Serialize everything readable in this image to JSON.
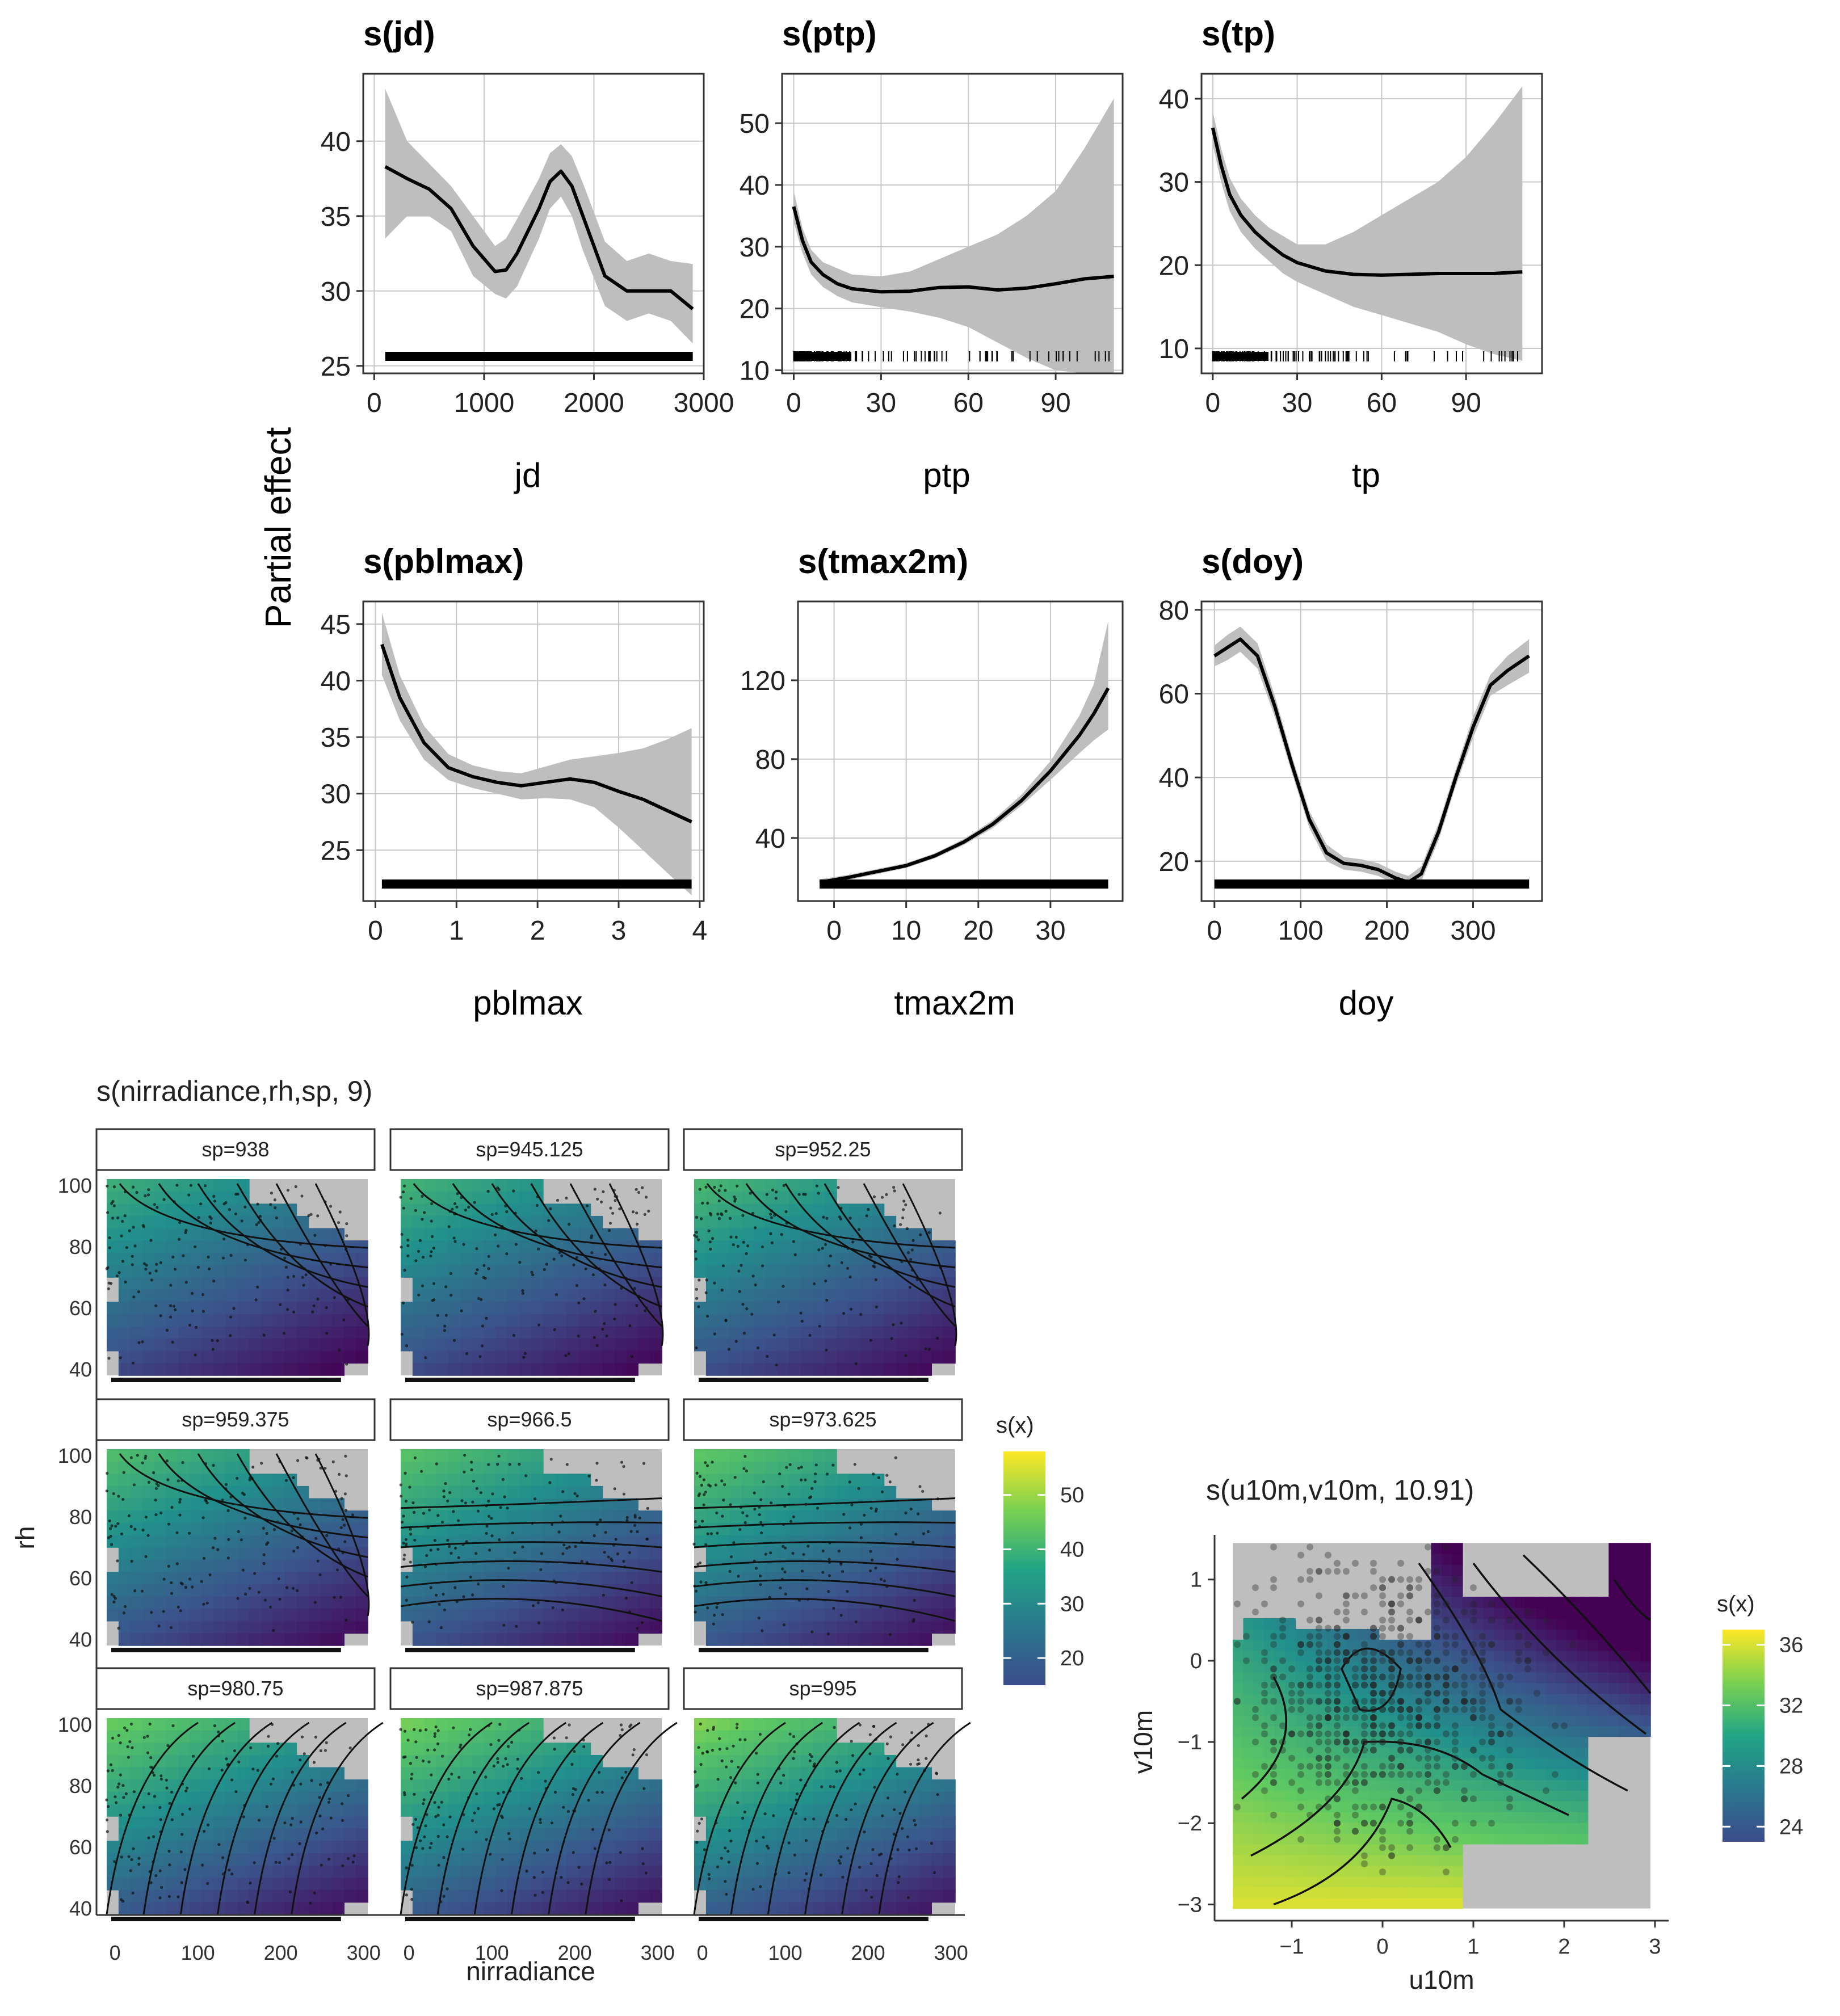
{
  "figure": {
    "y_axis_label": "Partial effect",
    "colorbar_main": {
      "title": "s(x)",
      "ticks": [
        50,
        40,
        30,
        20
      ],
      "range": [
        15,
        58
      ]
    },
    "colorbar_wind": {
      "title": "s(x)",
      "ticks": [
        36,
        32,
        28,
        24
      ],
      "range": [
        23,
        37
      ]
    },
    "colors": {
      "panel_border": "#333333",
      "grid": "#c8c8c8",
      "band": "#bebebe",
      "line": "#000000",
      "viridis": [
        "#440154",
        "#3b528b",
        "#21918c",
        "#5ec962",
        "#fde725"
      ],
      "na_fill": "#bebebe"
    }
  },
  "chart_data": [
    {
      "type": "line",
      "title": "s(jd)",
      "xlabel": "jd",
      "ylabel": "Partial effect",
      "xlim": [
        -100,
        3000
      ],
      "ylim": [
        24.5,
        44.5
      ],
      "xticks": [
        0,
        1000,
        2000,
        3000
      ],
      "xtick_labels": [
        "0",
        "1000",
        "2000",
        "3000"
      ],
      "yticks": [
        25,
        30,
        35,
        40
      ],
      "x": [
        100,
        300,
        500,
        700,
        900,
        1100,
        1200,
        1300,
        1500,
        1600,
        1700,
        1800,
        1900,
        2100,
        2300,
        2500,
        2700,
        2900
      ],
      "fit": [
        38.3,
        37.5,
        36.8,
        35.5,
        33,
        31.3,
        31.4,
        32.5,
        35.5,
        37.3,
        38,
        37,
        35,
        31,
        30,
        30,
        30,
        28.8
      ],
      "upper": [
        43.5,
        40,
        38.5,
        37,
        35,
        33,
        33.5,
        34.8,
        37.5,
        39.2,
        39.8,
        39,
        37.2,
        33.3,
        32,
        32.5,
        32,
        31.8
      ],
      "lower": [
        33.5,
        35,
        35,
        34,
        31,
        29.8,
        29.5,
        30.3,
        33.5,
        35.5,
        36.3,
        35,
        32.7,
        29,
        28,
        28.5,
        28,
        26.5
      ],
      "rug": "dense"
    },
    {
      "type": "line",
      "title": "s(ptp)",
      "xlabel": "ptp",
      "ylabel": "Partial effect",
      "xlim": [
        -4,
        113
      ],
      "ylim": [
        9.5,
        58
      ],
      "xticks": [
        0,
        30,
        60,
        90
      ],
      "xtick_labels": [
        "0",
        "30",
        "60",
        "90"
      ],
      "yticks": [
        10,
        20,
        30,
        40,
        50
      ],
      "x": [
        0,
        3,
        6,
        10,
        15,
        20,
        30,
        40,
        50,
        60,
        70,
        80,
        90,
        100,
        110
      ],
      "fit": [
        36.5,
        31,
        27.5,
        25.5,
        24,
        23.2,
        22.7,
        22.8,
        23.4,
        23.5,
        23,
        23.3,
        24,
        24.8,
        25.2
      ],
      "upper": [
        39,
        33,
        29.5,
        27.5,
        26.5,
        25.5,
        25.2,
        26,
        28,
        30,
        32,
        35,
        39,
        46,
        54
      ],
      "lower": [
        34,
        29,
        25.5,
        23.5,
        22,
        21,
        20.2,
        19.5,
        18.5,
        17,
        14.5,
        12,
        10,
        9.5,
        9.5
      ],
      "rug": "sparse"
    },
    {
      "type": "line",
      "title": "s(tp)",
      "xlabel": "tp",
      "ylabel": "Partial effect",
      "xlim": [
        -4,
        117
      ],
      "ylim": [
        7,
        43
      ],
      "xticks": [
        0,
        30,
        60,
        90
      ],
      "xtick_labels": [
        "0",
        "30",
        "60",
        "90"
      ],
      "yticks": [
        10,
        20,
        30,
        40
      ],
      "x": [
        0,
        3,
        6,
        10,
        15,
        20,
        25,
        30,
        40,
        50,
        60,
        70,
        80,
        90,
        100,
        110
      ],
      "fit": [
        36.5,
        32,
        28.5,
        26,
        24,
        22.5,
        21.2,
        20.3,
        19.3,
        18.9,
        18.8,
        18.9,
        19,
        19,
        19,
        19.2
      ],
      "upper": [
        38.5,
        34,
        30.5,
        28,
        26,
        24.5,
        23.5,
        22.5,
        22.5,
        24,
        26,
        28,
        30,
        33,
        37,
        41.5
      ],
      "lower": [
        34.5,
        30,
        26.5,
        24,
        22,
        20.5,
        19,
        18,
        16.5,
        15,
        14,
        13,
        12,
        10.5,
        9.3,
        8.5
      ],
      "rug": "sparse"
    },
    {
      "type": "line",
      "title": "s(pblmax)",
      "xlabel": "pblmax",
      "ylabel": "Partial effect",
      "xlim": [
        -0.15,
        4.05
      ],
      "ylim": [
        20.5,
        47
      ],
      "xticks": [
        0,
        1,
        2,
        3,
        4
      ],
      "xtick_labels": [
        "0",
        "1",
        "2",
        "3",
        "4"
      ],
      "yticks": [
        25,
        30,
        35,
        40,
        45
      ],
      "x": [
        0.08,
        0.3,
        0.6,
        0.9,
        1.2,
        1.5,
        1.8,
        2.1,
        2.4,
        2.7,
        3,
        3.3,
        3.6,
        3.9
      ],
      "fit": [
        43.2,
        38.5,
        34.5,
        32.3,
        31.5,
        31,
        30.7,
        31,
        31.3,
        31,
        30.2,
        29.5,
        28.5,
        27.5
      ],
      "upper": [
        46,
        40.5,
        36,
        33.5,
        32.5,
        32,
        31.8,
        32.4,
        33,
        33.3,
        33.6,
        34,
        34.8,
        35.8
      ],
      "lower": [
        40.5,
        36.5,
        33,
        31.2,
        30.5,
        30,
        29.5,
        29.6,
        29.5,
        28.8,
        27,
        25,
        23,
        21
      ],
      "rug": "dense"
    },
    {
      "type": "line",
      "title": "s(tmax2m)",
      "xlabel": "tmax2m",
      "ylabel": "Partial effect",
      "xlim": [
        -5,
        40
      ],
      "ylim": [
        8,
        160
      ],
      "xticks": [
        0,
        10,
        20,
        30
      ],
      "xtick_labels": [
        "0",
        "10",
        "20",
        "30"
      ],
      "yticks": [
        40,
        80,
        120
      ],
      "x": [
        -2,
        2,
        6,
        10,
        14,
        18,
        22,
        26,
        30,
        34,
        36,
        38
      ],
      "fit": [
        17.5,
        20,
        23,
        26,
        31,
        38,
        47,
        59,
        74,
        92,
        103,
        116
      ],
      "upper": [
        19,
        21.3,
        24.3,
        27.2,
        32.3,
        39.5,
        49,
        62,
        79,
        102,
        118,
        150
      ],
      "lower": [
        16,
        18.7,
        21.7,
        24.8,
        29.7,
        36.5,
        45,
        56.5,
        69.5,
        83,
        89.5,
        95
      ],
      "rug": "dense"
    },
    {
      "type": "line",
      "title": "s(doy)",
      "xlabel": "doy",
      "ylabel": "Partial effect",
      "xlim": [
        -15,
        380
      ],
      "ylim": [
        10.5,
        82
      ],
      "xticks": [
        0,
        100,
        200,
        300
      ],
      "xtick_labels": [
        "0",
        "100",
        "200",
        "300"
      ],
      "yticks": [
        20,
        40,
        60,
        80
      ],
      "x": [
        0,
        15,
        30,
        50,
        70,
        90,
        110,
        130,
        150,
        170,
        190,
        210,
        225,
        240,
        260,
        280,
        300,
        320,
        340,
        365
      ],
      "fit": [
        69,
        71,
        73,
        69,
        57,
        43,
        30,
        22,
        19.5,
        19,
        18,
        16,
        15,
        17,
        27,
        40,
        52,
        62,
        65.5,
        69
      ],
      "upper": [
        71.5,
        74,
        76,
        72,
        59.5,
        45,
        32,
        24,
        21,
        20.5,
        19.5,
        17.5,
        16.5,
        18.8,
        29,
        42,
        54.5,
        64.5,
        69,
        73
      ],
      "lower": [
        66.5,
        68,
        70,
        66,
        54.5,
        41,
        28,
        20,
        18,
        17.5,
        16.5,
        14.5,
        13.5,
        15.2,
        25,
        38,
        49.5,
        59.5,
        62,
        65
      ],
      "rug": "dense"
    },
    {
      "type": "heatmap",
      "title": "s(nirradiance,rh,sp, 9)",
      "xlabel": "nirradiance",
      "ylabel": "rh",
      "xlim": [
        -10,
        305
      ],
      "ylim": [
        38,
        102
      ],
      "xticks": [
        0,
        100,
        200,
        300
      ],
      "yticks": [
        40,
        60,
        80,
        100
      ],
      "facets": [
        {
          "label": "sp=938",
          "sp": 938
        },
        {
          "label": "sp=945.125",
          "sp": 945.125
        },
        {
          "label": "sp=952.25",
          "sp": 952.25
        },
        {
          "label": "sp=959.375",
          "sp": 959.375
        },
        {
          "label": "sp=966.5",
          "sp": 966.5
        },
        {
          "label": "sp=973.625",
          "sp": 973.625
        },
        {
          "label": "sp=980.75",
          "sp": 980.75
        },
        {
          "label": "sp=987.875",
          "sp": 987.875
        },
        {
          "label": "sp=995",
          "sp": 995
        }
      ]
    },
    {
      "type": "heatmap",
      "title": "s(u10m,v10m, 10.91)",
      "xlabel": "u10m",
      "ylabel": "v10m",
      "xlim": [
        -1.85,
        3.15
      ],
      "ylim": [
        -3.2,
        1.55
      ],
      "xticks": [
        -1,
        0,
        1,
        2,
        3
      ],
      "yticks": [
        -3,
        -2,
        -1,
        0,
        1
      ],
      "xtick_labels": [
        "−1",
        "0",
        "1",
        "2",
        "3"
      ],
      "ytick_labels": [
        "−3",
        "−2",
        "−1",
        "0",
        "1"
      ]
    }
  ]
}
